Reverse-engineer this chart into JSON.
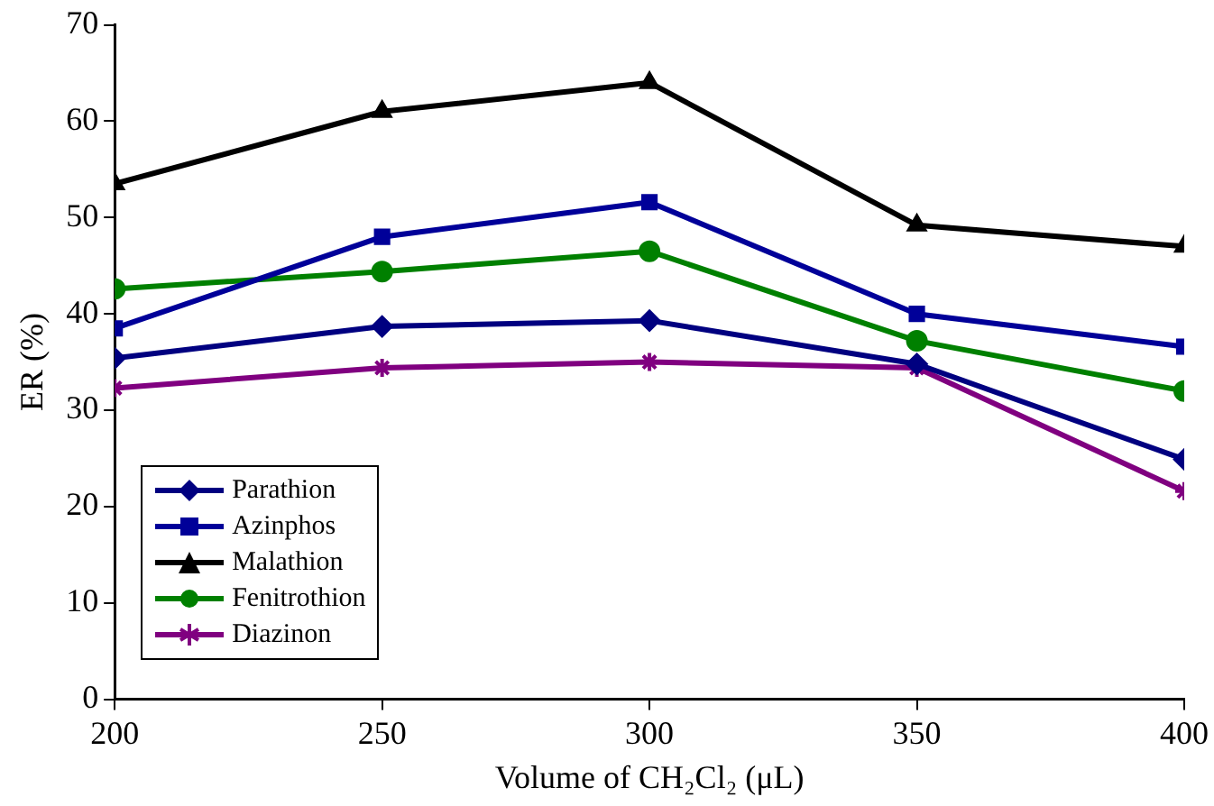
{
  "chart_data": {
    "type": "line",
    "xlabel": "Volume of CH₂Cl₂ (μL)",
    "ylabel": "ER (%)",
    "x": [
      200,
      250,
      300,
      350,
      400
    ],
    "xlim": [
      200,
      400
    ],
    "xticks": [
      200,
      250,
      300,
      350,
      400
    ],
    "ylim": [
      0,
      70
    ],
    "yticks": [
      0,
      10,
      20,
      30,
      40,
      50,
      60,
      70
    ],
    "grid": false,
    "legend": "bottom left",
    "series": [
      {
        "name": "Parathion",
        "color": "#000080",
        "marker": "diamond",
        "values": [
          35.4,
          38.7,
          39.3,
          34.8,
          24.9
        ]
      },
      {
        "name": "Azinphos",
        "color": "#000099",
        "marker": "square",
        "values": [
          38.5,
          48,
          51.6,
          40,
          36.6
        ]
      },
      {
        "name": "Malathion",
        "color": "#000000",
        "marker": "triangle",
        "values": [
          53.5,
          61,
          64,
          49.2,
          47
        ]
      },
      {
        "name": "Fenitrothion",
        "color": "#008000",
        "marker": "circle",
        "values": [
          42.6,
          44.4,
          46.5,
          37.2,
          32
        ]
      },
      {
        "name": "Diazinon",
        "color": "#800080",
        "marker": "cross",
        "values": [
          32.3,
          34.4,
          35,
          34.4,
          21.6
        ]
      }
    ]
  }
}
